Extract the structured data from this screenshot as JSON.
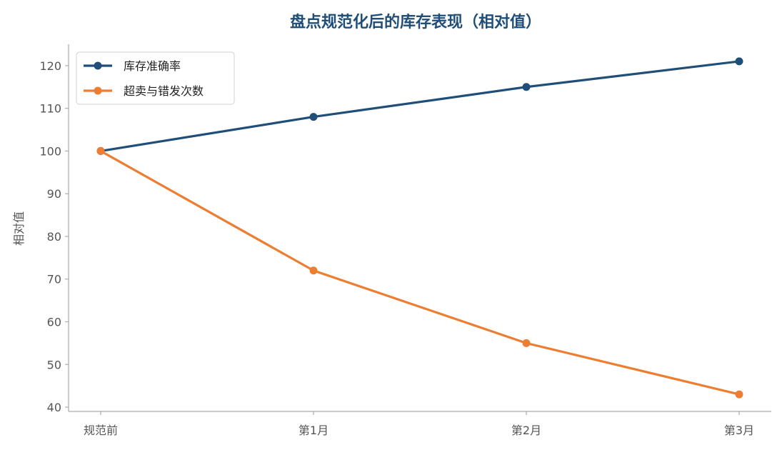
{
  "colors": {
    "title": "#1f4e79",
    "axis": "#aaaaaa",
    "tick_text": "#555555",
    "series_accuracy": "#1f4e79",
    "series_oversell": "#ed7d31"
  },
  "chart_data": {
    "type": "line",
    "title": "盘点规范化后的库存表现（相对值）",
    "xlabel": "",
    "ylabel": "相对值",
    "categories": [
      "规范前",
      "第1月",
      "第2月",
      "第3月"
    ],
    "ylim": [
      39,
      125
    ],
    "yticks": [
      40,
      50,
      60,
      70,
      80,
      90,
      100,
      110,
      120
    ],
    "grid": false,
    "legend_position": "top-left",
    "series": [
      {
        "name": "库存准确率",
        "values": [
          100,
          108,
          115,
          121
        ],
        "color": "#1f4e79"
      },
      {
        "name": "超卖与错发次数",
        "values": [
          100,
          72,
          55,
          43
        ],
        "color": "#ed7d31"
      }
    ]
  }
}
